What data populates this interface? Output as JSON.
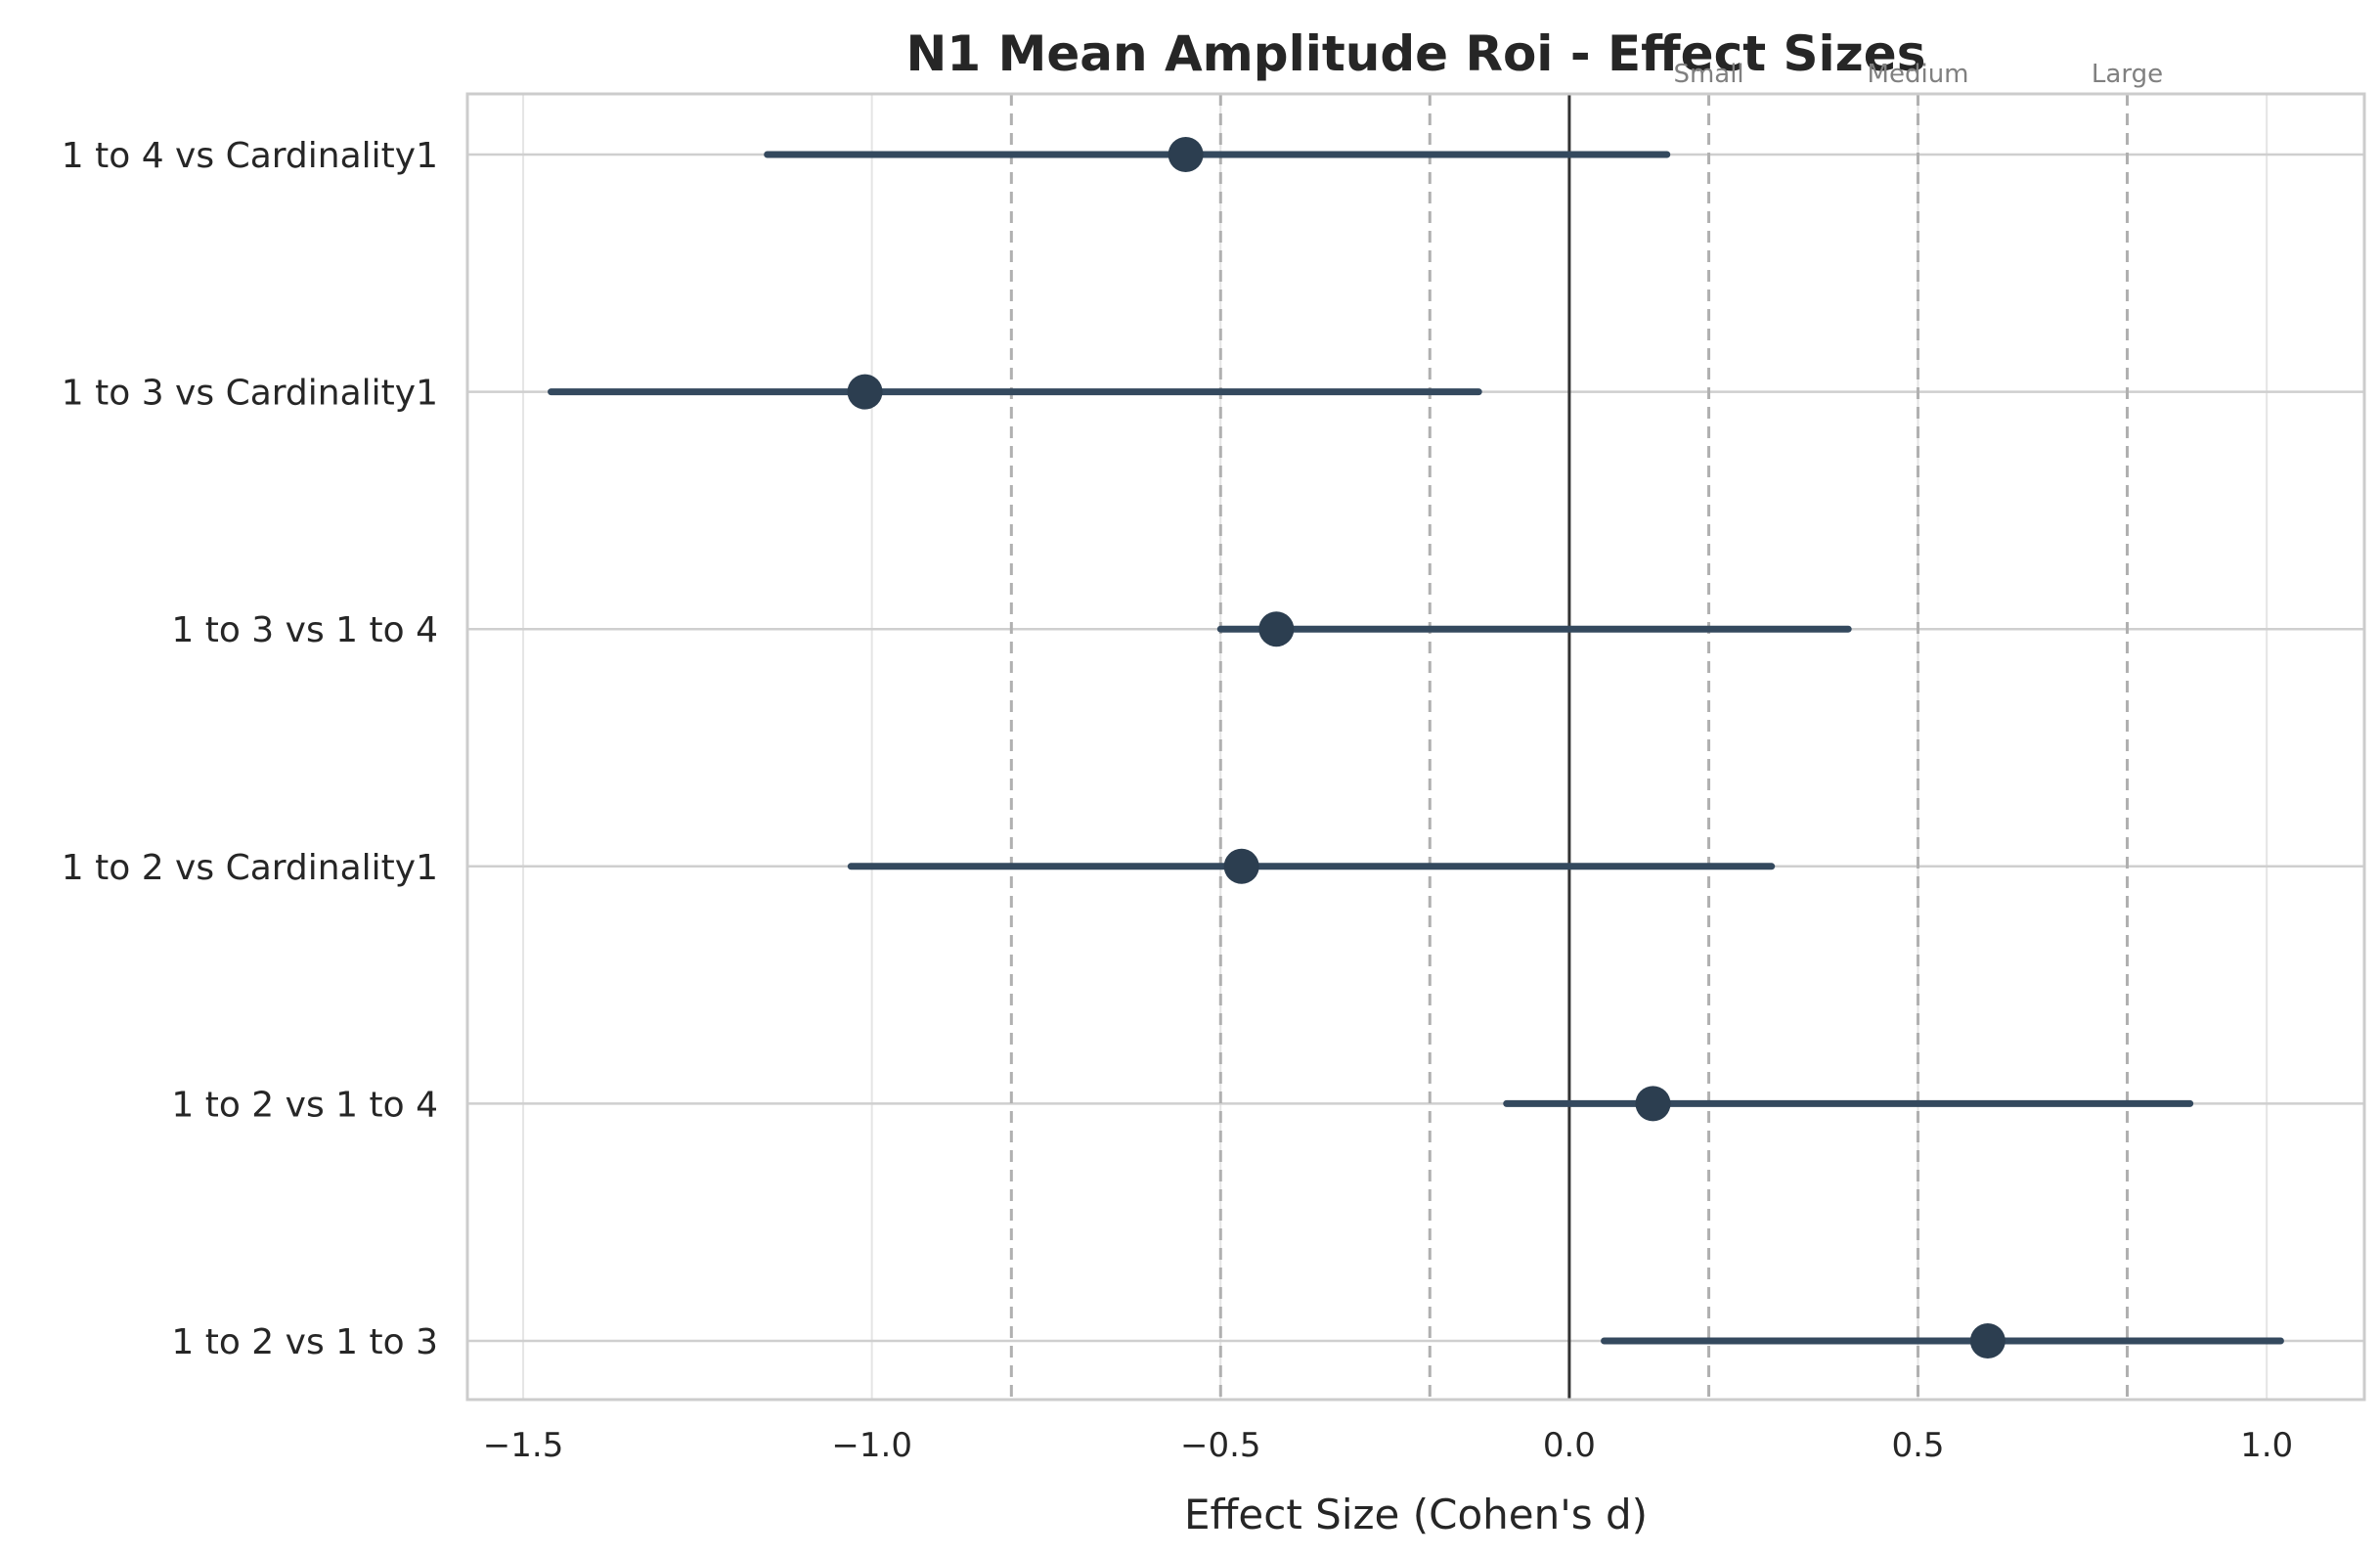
{
  "chart_data": {
    "type": "forest",
    "title": "N1 Mean Amplitude Roi - Effect Sizes",
    "xlabel": "Effect Size (Cohen's d)",
    "ylabel": "",
    "xlim": [
      -1.58,
      1.14
    ],
    "xticks": [
      -1.5,
      -1.0,
      -0.5,
      0.0,
      0.5,
      1.0
    ],
    "xtick_labels": [
      "−1.5",
      "−1.0",
      "−0.5",
      "0.0",
      "0.5",
      "1.0"
    ],
    "grid": true,
    "zero_line": 0,
    "reference_lines": [
      {
        "value": -0.8,
        "label": ""
      },
      {
        "value": -0.5,
        "label": ""
      },
      {
        "value": -0.2,
        "label": ""
      },
      {
        "value": 0.2,
        "label": "Small"
      },
      {
        "value": 0.5,
        "label": "Medium"
      },
      {
        "value": 0.8,
        "label": "Large"
      }
    ],
    "categories": [
      "1 to 4 vs Cardinality1",
      "1 to 3 vs Cardinality1",
      "1 to 3 vs 1 to 4",
      "1 to 2 vs Cardinality1",
      "1 to 2 vs 1 to 4",
      "1 to 2 vs 1 to 3"
    ],
    "estimates": [
      -0.55,
      -1.01,
      -0.42,
      -0.47,
      0.12,
      0.6
    ],
    "ci_lower": [
      -1.15,
      -1.46,
      -0.5,
      -1.03,
      -0.09,
      0.05
    ],
    "ci_upper": [
      0.14,
      -0.13,
      0.4,
      0.29,
      0.89,
      1.02
    ],
    "colors": {
      "marker": "#2c3e50",
      "ci": "#34495e",
      "zero": "#333333",
      "ref": "#b0b0b0",
      "grid": "#e5e5e5",
      "frame": "#cccccc"
    }
  }
}
